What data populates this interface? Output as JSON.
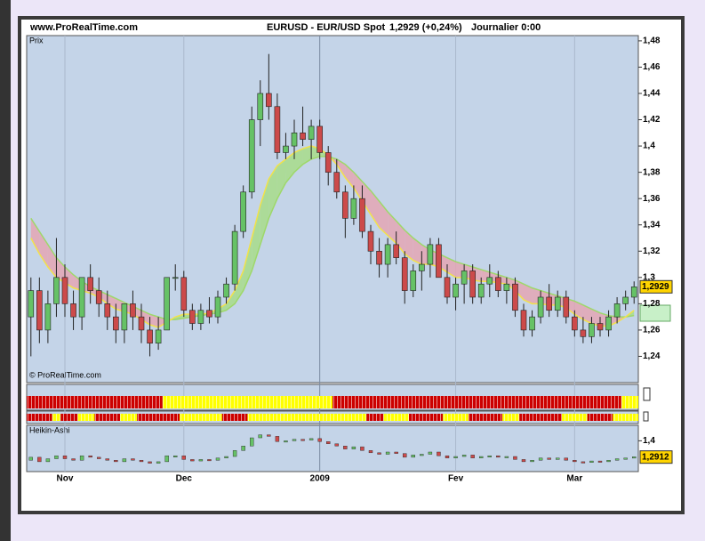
{
  "chart_data": {
    "type": "candlestick",
    "site": "www.ProRealTime.com",
    "symbol": "EURUSD - EUR/USD Spot",
    "price_change": "1,2929 (+0,24%)",
    "period": "Journalier 0:00",
    "price_label": "Prix",
    "copyright": "© ProRealTime.com",
    "ha_title": "Heikin-Ashi",
    "up_color": "#66c266",
    "down_color": "#cc4a4a",
    "fast_color": "#f2e24a",
    "slow_color": "#9ed86a",
    "ylim": [
      1.22,
      1.484
    ],
    "yticks": [
      {
        "value": 1.24,
        "label": "1,24"
      },
      {
        "value": 1.26,
        "label": "1,26"
      },
      {
        "value": 1.28,
        "label": "1,28"
      },
      {
        "value": 1.3,
        "label": "1,3"
      },
      {
        "value": 1.32,
        "label": "1,32"
      },
      {
        "value": 1.34,
        "label": "1,34"
      },
      {
        "value": 1.36,
        "label": "1,36"
      },
      {
        "value": 1.38,
        "label": "1,38"
      },
      {
        "value": 1.4,
        "label": "1,4"
      },
      {
        "value": 1.42,
        "label": "1,42"
      },
      {
        "value": 1.44,
        "label": "1,44"
      },
      {
        "value": 1.46,
        "label": "1,46"
      },
      {
        "value": 1.48,
        "label": "1,48"
      }
    ],
    "last_price": {
      "value": 1.2929,
      "label": "1,2929"
    },
    "categories": [
      null,
      null,
      null,
      null,
      "Nov",
      null,
      null,
      null,
      null,
      null,
      null,
      null,
      null,
      null,
      null,
      null,
      null,
      null,
      "Dec",
      null,
      null,
      null,
      null,
      null,
      null,
      null,
      null,
      null,
      null,
      null,
      null,
      null,
      null,
      null,
      "2009",
      null,
      null,
      null,
      null,
      null,
      null,
      null,
      null,
      null,
      null,
      null,
      null,
      null,
      null,
      null,
      "Fev",
      null,
      null,
      null,
      null,
      null,
      null,
      null,
      null,
      null,
      null,
      null,
      null,
      null,
      "Mar",
      null,
      null,
      null,
      null,
      null,
      null,
      null
    ],
    "candles": [
      [
        1.27,
        1.3,
        1.24,
        1.29
      ],
      [
        1.29,
        1.3,
        1.25,
        1.26
      ],
      [
        1.26,
        1.29,
        1.25,
        1.28
      ],
      [
        1.28,
        1.33,
        1.27,
        1.3
      ],
      [
        1.3,
        1.31,
        1.27,
        1.28
      ],
      [
        1.28,
        1.29,
        1.26,
        1.27
      ],
      [
        1.27,
        1.3,
        1.26,
        1.3
      ],
      [
        1.3,
        1.31,
        1.28,
        1.29
      ],
      [
        1.29,
        1.3,
        1.27,
        1.28
      ],
      [
        1.28,
        1.29,
        1.26,
        1.27
      ],
      [
        1.27,
        1.28,
        1.25,
        1.26
      ],
      [
        1.26,
        1.28,
        1.25,
        1.28
      ],
      [
        1.28,
        1.29,
        1.26,
        1.27
      ],
      [
        1.27,
        1.28,
        1.25,
        1.26
      ],
      [
        1.26,
        1.27,
        1.24,
        1.25
      ],
      [
        1.25,
        1.27,
        1.245,
        1.26
      ],
      [
        1.26,
        1.3,
        1.26,
        1.3
      ],
      [
        1.3,
        1.31,
        1.29,
        1.3
      ],
      [
        1.3,
        1.305,
        1.27,
        1.275
      ],
      [
        1.275,
        1.28,
        1.26,
        1.265
      ],
      [
        1.265,
        1.28,
        1.26,
        1.275
      ],
      [
        1.275,
        1.285,
        1.265,
        1.27
      ],
      [
        1.27,
        1.29,
        1.265,
        1.285
      ],
      [
        1.285,
        1.3,
        1.28,
        1.295
      ],
      [
        1.295,
        1.34,
        1.29,
        1.335
      ],
      [
        1.335,
        1.37,
        1.33,
        1.365
      ],
      [
        1.365,
        1.43,
        1.36,
        1.42
      ],
      [
        1.42,
        1.45,
        1.4,
        1.44
      ],
      [
        1.44,
        1.47,
        1.42,
        1.43
      ],
      [
        1.43,
        1.44,
        1.39,
        1.395
      ],
      [
        1.395,
        1.41,
        1.39,
        1.4
      ],
      [
        1.4,
        1.42,
        1.39,
        1.41
      ],
      [
        1.41,
        1.43,
        1.4,
        1.405
      ],
      [
        1.405,
        1.42,
        1.39,
        1.415
      ],
      [
        1.415,
        1.42,
        1.39,
        1.395
      ],
      [
        1.395,
        1.4,
        1.37,
        1.38
      ],
      [
        1.38,
        1.39,
        1.36,
        1.365
      ],
      [
        1.365,
        1.37,
        1.33,
        1.345
      ],
      [
        1.345,
        1.37,
        1.34,
        1.36
      ],
      [
        1.36,
        1.37,
        1.33,
        1.335
      ],
      [
        1.335,
        1.34,
        1.31,
        1.32
      ],
      [
        1.32,
        1.33,
        1.3,
        1.31
      ],
      [
        1.31,
        1.33,
        1.3,
        1.325
      ],
      [
        1.325,
        1.335,
        1.31,
        1.315
      ],
      [
        1.315,
        1.32,
        1.28,
        1.29
      ],
      [
        1.29,
        1.31,
        1.285,
        1.305
      ],
      [
        1.305,
        1.32,
        1.29,
        1.31
      ],
      [
        1.31,
        1.33,
        1.3,
        1.325
      ],
      [
        1.325,
        1.33,
        1.3,
        1.3
      ],
      [
        1.3,
        1.31,
        1.28,
        1.285
      ],
      [
        1.285,
        1.3,
        1.275,
        1.295
      ],
      [
        1.295,
        1.31,
        1.28,
        1.305
      ],
      [
        1.305,
        1.31,
        1.28,
        1.285
      ],
      [
        1.285,
        1.3,
        1.28,
        1.295
      ],
      [
        1.295,
        1.31,
        1.285,
        1.3
      ],
      [
        1.3,
        1.305,
        1.285,
        1.29
      ],
      [
        1.29,
        1.3,
        1.28,
        1.295
      ],
      [
        1.295,
        1.3,
        1.27,
        1.275
      ],
      [
        1.275,
        1.28,
        1.255,
        1.26
      ],
      [
        1.26,
        1.275,
        1.255,
        1.27
      ],
      [
        1.27,
        1.29,
        1.265,
        1.285
      ],
      [
        1.285,
        1.295,
        1.27,
        1.275
      ],
      [
        1.275,
        1.29,
        1.27,
        1.285
      ],
      [
        1.285,
        1.29,
        1.265,
        1.27
      ],
      [
        1.27,
        1.275,
        1.255,
        1.26
      ],
      [
        1.26,
        1.27,
        1.25,
        1.255
      ],
      [
        1.255,
        1.27,
        1.25,
        1.265
      ],
      [
        1.265,
        1.27,
        1.255,
        1.26
      ],
      [
        1.26,
        1.275,
        1.255,
        1.27
      ],
      [
        1.27,
        1.285,
        1.265,
        1.28
      ],
      [
        1.28,
        1.29,
        1.275,
        1.285
      ],
      [
        1.285,
        1.297,
        1.28,
        1.2929
      ]
    ],
    "ma_fast": [
      1.33,
      1.318,
      1.308,
      1.3,
      1.296,
      1.292,
      1.29,
      1.288,
      1.285,
      1.28,
      1.276,
      1.274,
      1.272,
      1.268,
      1.264,
      1.262,
      1.266,
      1.27,
      1.272,
      1.272,
      1.272,
      1.273,
      1.276,
      1.28,
      1.29,
      1.305,
      1.33,
      1.355,
      1.375,
      1.385,
      1.39,
      1.395,
      1.398,
      1.4,
      1.398,
      1.393,
      1.386,
      1.376,
      1.368,
      1.358,
      1.348,
      1.338,
      1.332,
      1.326,
      1.318,
      1.313,
      1.31,
      1.31,
      1.308,
      1.304,
      1.3,
      1.3,
      1.298,
      1.297,
      1.297,
      1.296,
      1.295,
      1.29,
      1.283,
      1.28,
      1.28,
      1.279,
      1.279,
      1.277,
      1.272,
      1.268,
      1.265,
      1.263,
      1.263,
      1.266,
      1.27,
      1.275
    ],
    "ma_slow": [
      1.345,
      1.335,
      1.325,
      1.315,
      1.308,
      1.302,
      1.297,
      1.293,
      1.29,
      1.287,
      1.284,
      1.281,
      1.278,
      1.275,
      1.272,
      1.27,
      1.268,
      1.268,
      1.269,
      1.27,
      1.271,
      1.272,
      1.273,
      1.275,
      1.28,
      1.29,
      1.305,
      1.325,
      1.345,
      1.36,
      1.372,
      1.38,
      1.386,
      1.39,
      1.392,
      1.392,
      1.39,
      1.386,
      1.38,
      1.373,
      1.366,
      1.358,
      1.35,
      1.343,
      1.336,
      1.33,
      1.325,
      1.321,
      1.318,
      1.315,
      1.312,
      1.31,
      1.308,
      1.306,
      1.304,
      1.302,
      1.3,
      1.298,
      1.295,
      1.292,
      1.29,
      1.288,
      1.286,
      1.284,
      1.282,
      1.279,
      1.276,
      1.273,
      1.271,
      1.27,
      1.27,
      1.271
    ],
    "signal1": [
      {
        "color": "#cc0000",
        "count": 16
      },
      {
        "color": "#ffff00",
        "count": 20
      },
      {
        "color": "#cc0000",
        "count": 34
      },
      {
        "color": "#ffff00",
        "count": 2
      }
    ],
    "signal2": [
      {
        "color": "#cc0000",
        "count": 3
      },
      {
        "color": "#ffff00",
        "count": 1
      },
      {
        "color": "#cc0000",
        "count": 2
      },
      {
        "color": "#ffff00",
        "count": 2
      },
      {
        "color": "#cc0000",
        "count": 3
      },
      {
        "color": "#ffff00",
        "count": 2
      },
      {
        "color": "#cc0000",
        "count": 5
      },
      {
        "color": "#ffff00",
        "count": 5
      },
      {
        "color": "#cc0000",
        "count": 3
      },
      {
        "color": "#ffff00",
        "count": 14
      },
      {
        "color": "#cc0000",
        "count": 2
      },
      {
        "color": "#ffff00",
        "count": 3
      },
      {
        "color": "#cc0000",
        "count": 4
      },
      {
        "color": "#ffff00",
        "count": 3
      },
      {
        "color": "#cc0000",
        "count": 4
      },
      {
        "color": "#ffff00",
        "count": 2
      },
      {
        "color": "#cc0000",
        "count": 5
      },
      {
        "color": "#ffff00",
        "count": 3
      },
      {
        "color": "#cc0000",
        "count": 3
      },
      {
        "color": "#ffff00",
        "count": 3
      }
    ],
    "ha_ylim": [
      1.194,
      1.4916
    ],
    "ha_yticks": [
      {
        "value": 1.4,
        "label": "1,4"
      }
    ],
    "ha_last": {
      "value": 1.2912,
      "label": "1,2912"
    }
  }
}
